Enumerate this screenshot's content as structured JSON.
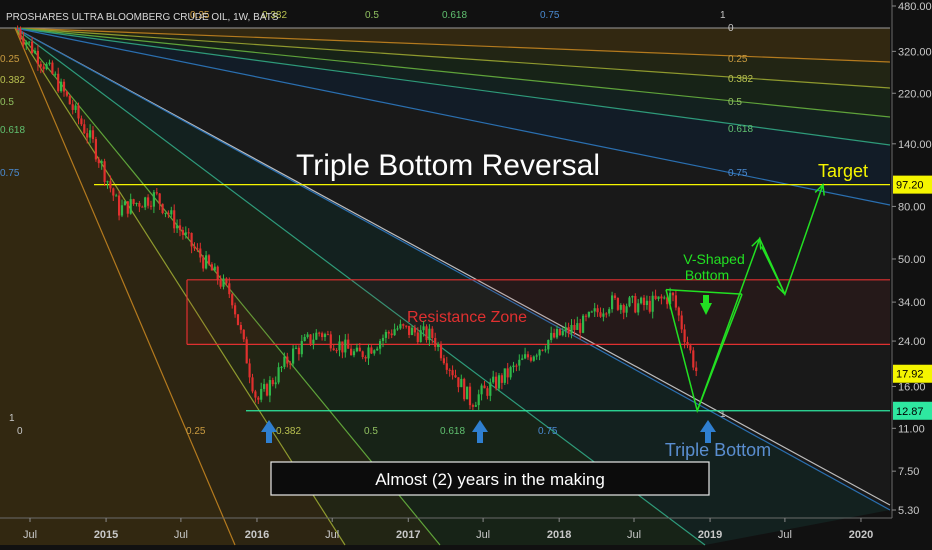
{
  "header": {
    "symbol_title": "PROSHARES ULTRA BLOOMBERG CRUDE OIL, 1W, BATS"
  },
  "annotations": {
    "main_title": "Triple Bottom Reversal",
    "resistance_label": "Resistance Zone",
    "vshape_label_line1": "V-Shaped",
    "vshape_label_line2": "Bottom",
    "target_label": "Target",
    "triple_bottom_label": "Triple Bottom",
    "box_caption": "Almost (2) years in the making"
  },
  "price_badges": [
    {
      "label": "97.20",
      "value": 97.2,
      "color": "#f5f500",
      "text_color": "#000000"
    },
    {
      "label": "17.92",
      "value": 17.92,
      "color": "#f5f500",
      "text_color": "#000000"
    },
    {
      "label": "12.87",
      "value": 12.87,
      "color": "#2ee8a0",
      "text_color": "#000000"
    }
  ],
  "fan_labels_top": [
    "0.25",
    "0.382",
    "0.5",
    "0.618",
    "0.75",
    "1",
    "0"
  ],
  "fan_labels_right": [
    "0.25",
    "0.382",
    "0.5",
    "0.618",
    "0.75"
  ],
  "fan_labels_left": [
    "0.25",
    "0.382",
    "0.5",
    "0.618",
    "0.75"
  ],
  "fan_labels_bottom": [
    "0.25",
    "0.382",
    "0.5",
    "0.618",
    "0.75",
    "1"
  ],
  "left_markers": [
    "1",
    "0"
  ],
  "chart_data": {
    "type": "line",
    "title": "PROSHARES ULTRA BLOOMBERG CRUDE OIL, 1W, BATS",
    "y_scale": "log",
    "ylim": [
      5.3,
      480
    ],
    "y_ticks": [
      "480.00",
      "320.00",
      "220.00",
      "140.00",
      "80.00",
      "50.00",
      "34.00",
      "24.00",
      "16.00",
      "11.00",
      "7.50",
      "5.30"
    ],
    "x_ticks": [
      "Jul",
      "2015",
      "Jul",
      "2016",
      "Jul",
      "2017",
      "Jul",
      "2018",
      "Jul",
      "2019",
      "Jul",
      "2020"
    ],
    "series": [
      {
        "x": [
          "2014-06",
          "2014-09",
          "2014-12",
          "2015-02",
          "2015-05",
          "2015-08",
          "2015-11",
          "2016-01",
          "2016-04",
          "2016-06",
          "2016-09",
          "2016-12",
          "2017-03",
          "2017-06",
          "2017-09",
          "2017-12",
          "2018-03",
          "2018-05",
          "2018-08",
          "2018-10",
          "2018-12"
        ],
        "y": [
          390,
          250,
          140,
          78,
          88,
          55,
          36,
          14,
          22,
          26,
          21,
          27,
          25,
          14,
          18,
          24,
          28,
          34,
          33,
          36,
          17.92
        ]
      }
    ],
    "levels": {
      "target": 97.2,
      "resistance_zone": [
        23.3,
        41.5
      ],
      "triple_bottom": 12.87,
      "last_price": 17.92
    },
    "projection": [
      {
        "x": "2018-12",
        "y": 12.87
      },
      {
        "x": "2019-05",
        "y": 60
      },
      {
        "x": "2019-07",
        "y": 36.5
      },
      {
        "x": "2019-10",
        "y": 97.2
      }
    ],
    "legend": "none",
    "grid": false
  }
}
